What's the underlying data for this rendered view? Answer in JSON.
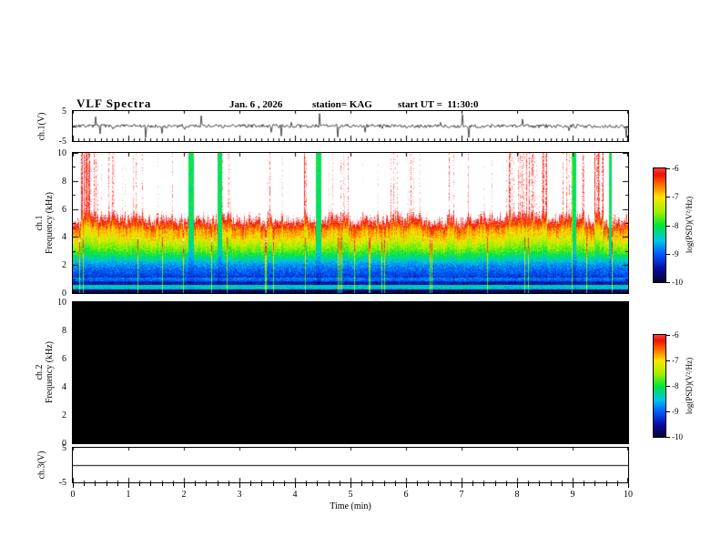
{
  "title": "VLF Spectra",
  "header": {
    "date": "Jan. 6 , 2026",
    "station": "station= KAG",
    "start_ut": "start UT =  11:30:0"
  },
  "colors": {
    "background": "#ffffff",
    "frame": "#000000",
    "text": "#000000",
    "ch2_fill": "#000000",
    "spectrogram_high": "#ff0000",
    "spectrogram_low": "#050528"
  },
  "xaxis": {
    "label": "Time (min)",
    "lim": [
      0,
      10
    ],
    "ticks": [
      "0",
      "1",
      "2",
      "3",
      "4",
      "5",
      "6",
      "7",
      "8",
      "9",
      "10"
    ]
  },
  "colorbar": {
    "label": "log(PSD)(V²/Hz)",
    "ticks": [
      "-6",
      "-7",
      "-8",
      "-9",
      "-10"
    ],
    "value_range": [
      -10,
      -6
    ],
    "gradient_top_to_bottom": [
      "#ff3c3c",
      "#eb1400",
      "#ff7800",
      "#ffe600",
      "#a0f000",
      "#00e63c",
      "#00c8e6",
      "#005aff",
      "#0a0aa0",
      "#050528"
    ]
  },
  "chart_data": [
    {
      "type": "line",
      "panel": "ch1-waveform",
      "ylabel": "ch.1(V)",
      "ylim": [
        -5,
        5
      ],
      "yticks": [
        "5",
        "-5"
      ],
      "xlim_min": [
        0,
        10
      ],
      "description": "Noisy voltage waveform centered near 0 V with small fluctuations (~±1 V) and occasional spikes"
    },
    {
      "type": "heatmap",
      "panel": "ch1-spectrogram",
      "ylabel_lines": [
        "ch.1",
        "Frequency (kHz)"
      ],
      "ylim": [
        0,
        10
      ],
      "yticks": [
        "10",
        "8",
        "6",
        "4",
        "2",
        "0"
      ],
      "xlim_min": [
        0,
        10
      ],
      "value_scale": "log(PSD)(V²/Hz)",
      "value_range": [
        -10,
        -6
      ],
      "frequency_bands": [
        {
          "range_khz": [
            4.5,
            10
          ],
          "approx_log_psd": -6.2,
          "note": "intense bursty emission, red/white vertical streaks with green gaps"
        },
        {
          "range_khz": [
            3,
            4.5
          ],
          "approx_log_psd": -7.5,
          "note": "yellow-orange band"
        },
        {
          "range_khz": [
            2,
            3
          ],
          "approx_log_psd": -8.4,
          "note": "green-cyan band"
        },
        {
          "range_khz": [
            1,
            2
          ],
          "approx_log_psd": -9.2,
          "note": "blue band"
        },
        {
          "range_khz": [
            0,
            1
          ],
          "approx_log_psd": -9.8,
          "note": "dark background with thin brighter cyan line near 0.45 kHz"
        }
      ],
      "extra": "occasional full-height green vertical lines"
    },
    {
      "type": "heatmap",
      "panel": "ch2-spectrogram",
      "ylabel_lines": [
        "ch.2",
        "Frequency (kHz)"
      ],
      "ylim": [
        0,
        10
      ],
      "yticks": [
        "10",
        "8",
        "6",
        "4",
        "2",
        "0"
      ],
      "xlim_min": [
        0,
        10
      ],
      "value_scale": "log(PSD)(V²/Hz)",
      "value_range": [
        -10,
        -6
      ],
      "frequency_bands": [
        {
          "range_khz": [
            0,
            10
          ],
          "approx_log_psd": -10,
          "note": "no signal, uniformly black"
        }
      ]
    },
    {
      "type": "line",
      "panel": "ch3-waveform",
      "ylabel": "ch.3(V)",
      "ylim": [
        -5,
        5
      ],
      "yticks": [
        "5",
        "-5"
      ],
      "xlim_min": [
        0,
        10
      ],
      "description": "Flat line at 0 V"
    }
  ]
}
